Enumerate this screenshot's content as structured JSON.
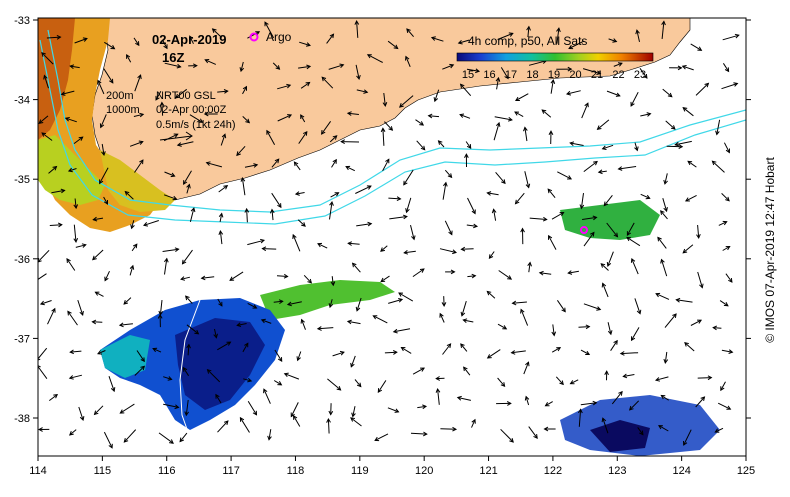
{
  "map": {
    "date": "02-Apr-2019",
    "hour": "16Z",
    "argo_label": "Argo",
    "colorbar_title": "4h comp, p50, All Sats",
    "colorbar_ticks": [
      "15",
      "16",
      "17",
      "18",
      "19",
      "20",
      "21",
      "22",
      "23"
    ],
    "contour_200": "200m",
    "contour_1000": "1000m",
    "current_source": "NRT00 GSL",
    "current_time": "02-Apr 00:00Z",
    "arrow_scale": "0.5m/s (1kt 24h)",
    "credit": "© IMOS 07-Apr-2019 12:47 Hobart",
    "x_ticks": [
      "114",
      "115",
      "116",
      "117",
      "118",
      "119",
      "120",
      "121",
      "122",
      "123",
      "124",
      "125"
    ],
    "y_ticks": [
      "-33",
      "-34",
      "-35",
      "-36",
      "-37",
      "-38"
    ],
    "colors": {
      "land": "#f9c99c",
      "argo": "#ff00ff",
      "contour": "#40d8e8"
    }
  }
}
